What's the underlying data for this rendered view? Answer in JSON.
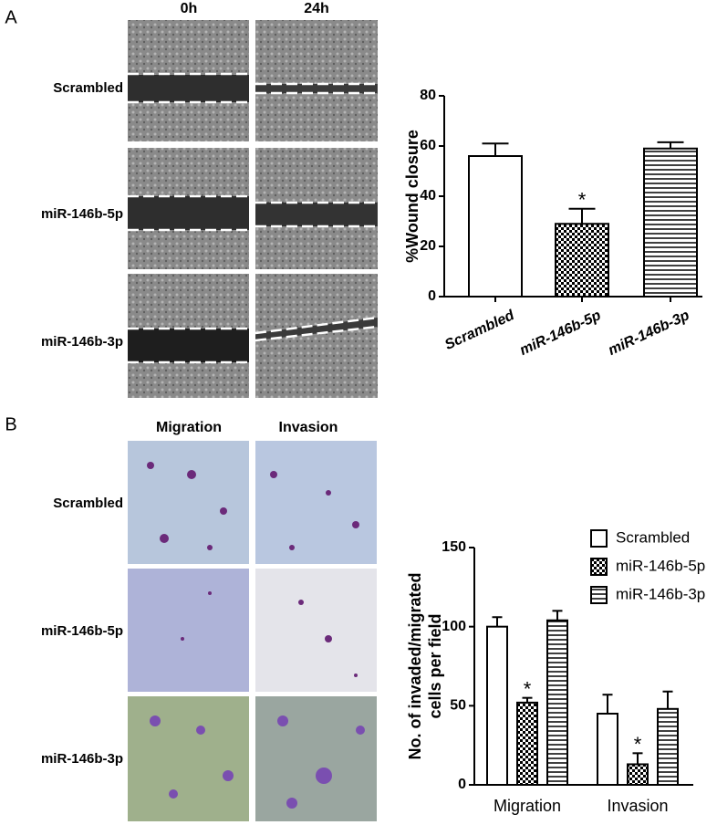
{
  "panels": [
    {
      "label": "A",
      "columns": [
        "0h",
        "24h"
      ],
      "rows": [
        "Scrambled",
        "miR-146b-5p",
        "miR-146b-3p"
      ]
    },
    {
      "label": "B",
      "columns": [
        "Migration",
        "Invasion"
      ],
      "rows": [
        "Scrambled",
        "miR-146b-5p",
        "miR-146b-3p"
      ]
    }
  ],
  "chart_data": [
    {
      "type": "bar",
      "ylabel": "%Wound closure",
      "categories": [
        "Scrambled",
        "miR-146b-5p",
        "miR-146b-3p"
      ],
      "values": [
        56,
        29,
        59
      ],
      "errors": [
        5,
        6,
        2.5
      ],
      "significance": [
        null,
        "*",
        null
      ],
      "patterns": [
        "none",
        "checker",
        "hlines"
      ],
      "color": "#000000",
      "ylim": [
        0,
        80
      ],
      "yticks": [
        0,
        20,
        40,
        60,
        80
      ]
    },
    {
      "type": "grouped-bar",
      "ylabel": [
        "No. of invaded/migrated",
        "cells per field"
      ],
      "categories": [
        "Migration",
        "Invasion"
      ],
      "series": [
        {
          "name": "Scrambled",
          "color": "#000000",
          "pattern": "none",
          "values": [
            100,
            45
          ],
          "errors": [
            6,
            12
          ],
          "significance": [
            null,
            null
          ]
        },
        {
          "name": "miR-146b-5p",
          "color": "#000000",
          "pattern": "checker",
          "values": [
            52,
            13
          ],
          "errors": [
            3,
            7
          ],
          "significance": [
            "*",
            "*"
          ]
        },
        {
          "name": "miR-146b-3p",
          "color": "#000000",
          "pattern": "hlines",
          "values": [
            104,
            48
          ],
          "errors": [
            6,
            11
          ],
          "significance": [
            null,
            null
          ]
        }
      ],
      "legend": "top-right",
      "ylim": [
        0,
        150
      ],
      "yticks": [
        0,
        50,
        100,
        150
      ]
    }
  ]
}
